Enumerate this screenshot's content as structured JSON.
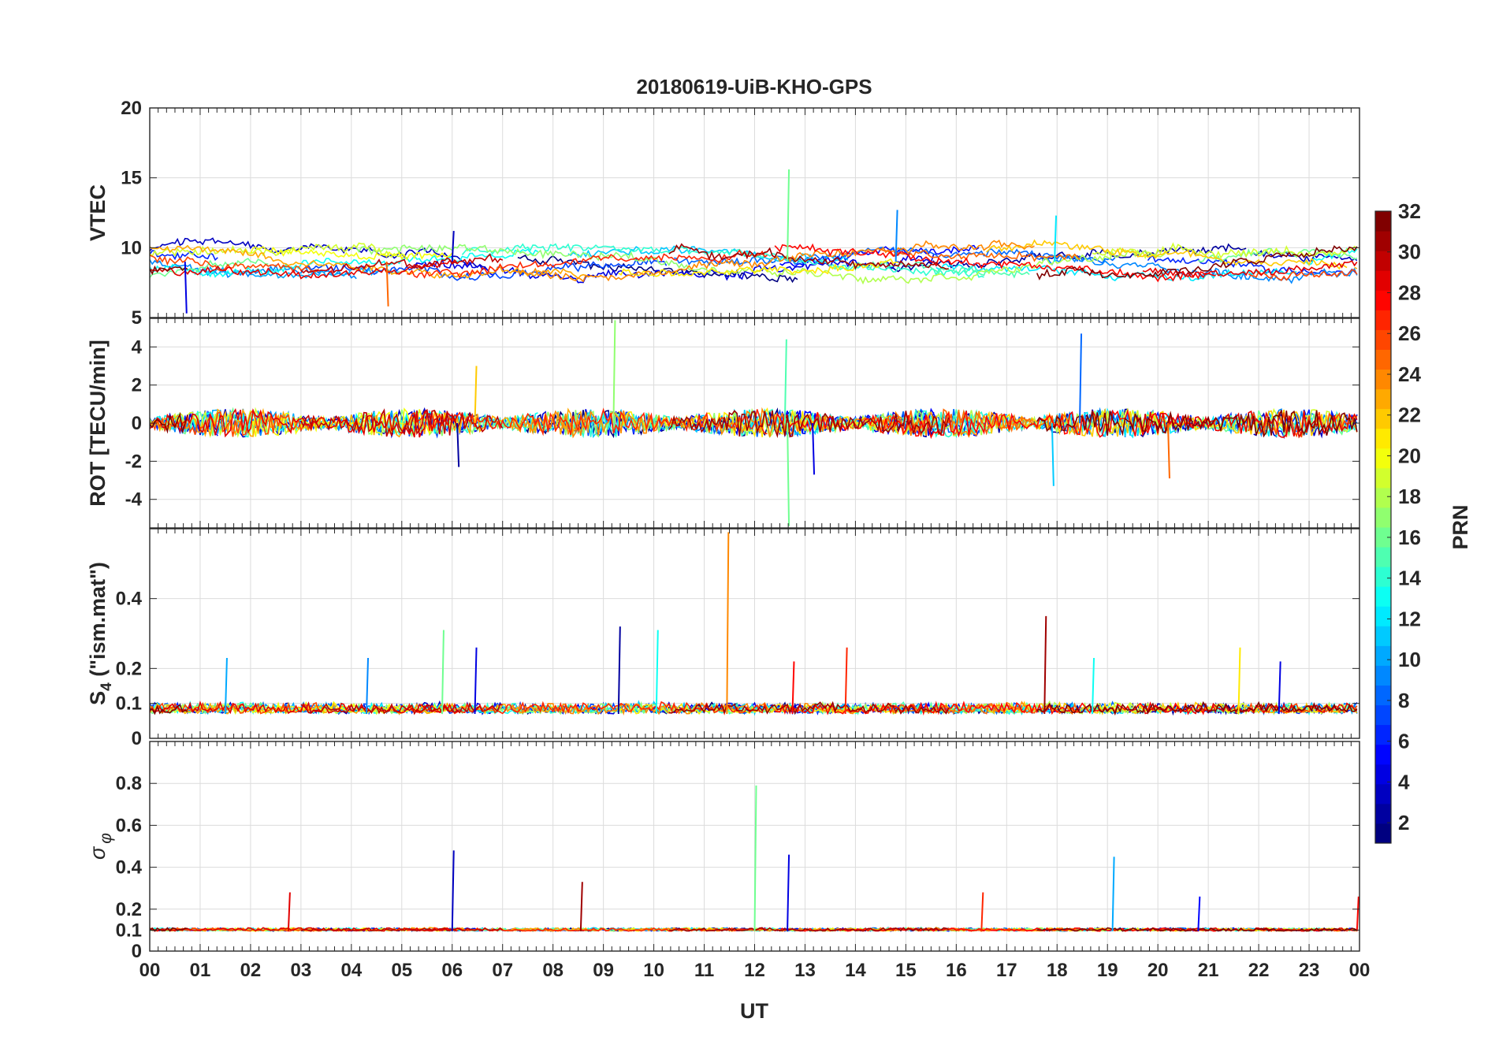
{
  "chart_data": {
    "type": "line",
    "title": "20180619-UiB-KHO-GPS",
    "xlabel": "UT",
    "x_ticks": [
      "00",
      "01",
      "02",
      "03",
      "04",
      "05",
      "06",
      "07",
      "08",
      "09",
      "10",
      "11",
      "12",
      "13",
      "14",
      "15",
      "16",
      "17",
      "18",
      "19",
      "20",
      "21",
      "22",
      "23",
      "00"
    ],
    "xlim": [
      0,
      24
    ],
    "colorbar": {
      "label": "PRN",
      "range": [
        1,
        32
      ],
      "ticks": [
        "2",
        "4",
        "6",
        "8",
        "10",
        "12",
        "14",
        "16",
        "18",
        "20",
        "22",
        "24",
        "26",
        "28",
        "30",
        "32"
      ]
    },
    "panels": [
      {
        "id": "vtec",
        "ylabel": "VTEC",
        "ylim": [
          5,
          20
        ],
        "y_ticks": [
          5,
          10,
          15,
          20
        ],
        "y_tick_labels": [
          "5",
          "10",
          "15",
          "20"
        ],
        "baseline": 9,
        "noise": 0.9,
        "spikes": [
          {
            "t": 12.65,
            "v": 15.6,
            "prn": 16
          },
          {
            "t": 14.8,
            "v": 12.7,
            "prn": 9
          },
          {
            "t": 17.95,
            "v": 12.3,
            "prn": 12
          },
          {
            "t": 6.0,
            "v": 11.2,
            "prn": 3
          },
          {
            "t": 0.7,
            "v": 5.3,
            "prn": 4
          },
          {
            "t": 4.7,
            "v": 5.8,
            "prn": 25
          }
        ]
      },
      {
        "id": "rot",
        "ylabel": "ROT [TECU/min]",
        "ylim": [
          -5.5,
          5.5
        ],
        "y_ticks": [
          -4,
          -2,
          0,
          2,
          4
        ],
        "y_tick_labels": [
          "-4",
          "-2",
          "0",
          "2",
          "4"
        ],
        "baseline": 0,
        "noise": 0.6,
        "spikes": [
          {
            "t": 9.2,
            "v": 5.4,
            "prn": 17
          },
          {
            "t": 12.65,
            "v": -5.4,
            "prn": 16
          },
          {
            "t": 12.6,
            "v": 4.4,
            "prn": 15
          },
          {
            "t": 18.45,
            "v": 4.7,
            "prn": 8
          },
          {
            "t": 17.9,
            "v": -3.3,
            "prn": 11
          },
          {
            "t": 13.15,
            "v": -2.7,
            "prn": 4
          },
          {
            "t": 20.2,
            "v": -2.9,
            "prn": 25
          },
          {
            "t": 6.1,
            "v": -2.3,
            "prn": 2
          },
          {
            "t": 6.45,
            "v": 3.0,
            "prn": 22
          }
        ]
      },
      {
        "id": "s4",
        "ylabel_main": "S",
        "ylabel_sub": "4",
        "ylabel_rest": " (\"ism.mat\")",
        "ylim": [
          0,
          0.6
        ],
        "y_ticks": [
          0,
          0.1,
          0.2,
          0.4
        ],
        "y_tick_labels": [
          "0",
          "0.1",
          "0.2",
          "0.4"
        ],
        "baseline": 0.07,
        "noise": 0.04,
        "spikes": [
          {
            "t": 11.45,
            "v": 0.59,
            "prn": 24
          },
          {
            "t": 17.75,
            "v": 0.35,
            "prn": 31
          },
          {
            "t": 9.3,
            "v": 0.32,
            "prn": 2
          },
          {
            "t": 10.05,
            "v": 0.31,
            "prn": 13
          },
          {
            "t": 5.8,
            "v": 0.31,
            "prn": 16
          },
          {
            "t": 6.45,
            "v": 0.26,
            "prn": 4
          },
          {
            "t": 13.8,
            "v": 0.26,
            "prn": 27
          },
          {
            "t": 21.6,
            "v": 0.26,
            "prn": 21
          },
          {
            "t": 1.5,
            "v": 0.23,
            "prn": 10
          },
          {
            "t": 4.3,
            "v": 0.23,
            "prn": 9
          },
          {
            "t": 22.4,
            "v": 0.22,
            "prn": 4
          },
          {
            "t": 18.7,
            "v": 0.23,
            "prn": 13
          },
          {
            "t": 12.75,
            "v": 0.22,
            "prn": 28
          }
        ]
      },
      {
        "id": "sigma",
        "ylabel_symbol": "σ",
        "ylabel_sub": "φ",
        "ylim": [
          0,
          1.0
        ],
        "y_ticks": [
          0,
          0.1,
          0.2,
          0.4,
          0.6,
          0.8
        ],
        "y_tick_labels": [
          "0",
          "0.1",
          "0.2",
          "0.4",
          "0.6",
          "0.8"
        ],
        "baseline": 0.095,
        "noise": 0.02,
        "spikes": [
          {
            "t": 12.0,
            "v": 0.79,
            "prn": 16
          },
          {
            "t": 6.0,
            "v": 0.48,
            "prn": 3
          },
          {
            "t": 12.65,
            "v": 0.46,
            "prn": 4
          },
          {
            "t": 19.1,
            "v": 0.45,
            "prn": 10
          },
          {
            "t": 8.55,
            "v": 0.33,
            "prn": 31
          },
          {
            "t": 2.75,
            "v": 0.28,
            "prn": 29
          },
          {
            "t": 16.5,
            "v": 0.28,
            "prn": 27
          },
          {
            "t": 23.95,
            "v": 0.26,
            "prn": 28
          },
          {
            "t": 20.8,
            "v": 0.26,
            "prn": 5
          }
        ]
      }
    ]
  }
}
